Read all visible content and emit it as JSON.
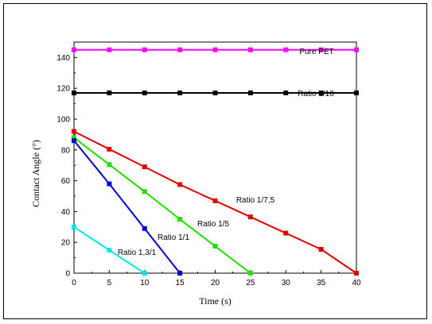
{
  "chart_data": {
    "type": "line",
    "title": "",
    "xlabel": "Time (s)",
    "ylabel": "Contact Angle (°)",
    "xlim": [
      0,
      40
    ],
    "ylim": [
      0,
      150
    ],
    "x_ticks": [
      0,
      5,
      10,
      15,
      20,
      25,
      30,
      35,
      40
    ],
    "y_ticks": [
      0,
      20,
      40,
      60,
      80,
      100,
      120,
      140
    ],
    "grid": false,
    "legend": "none (labels placed next to lines)",
    "series": [
      {
        "name": "Pure PET",
        "color": "#ff00ff",
        "x": [
          0,
          5,
          10,
          15,
          20,
          25,
          30,
          35,
          40
        ],
        "y": [
          145,
          145,
          145,
          145,
          145,
          145,
          145,
          145,
          145
        ]
      },
      {
        "name": "Ratio 1/10",
        "color": "#000000",
        "x": [
          0,
          5,
          10,
          15,
          20,
          25,
          30,
          35,
          40
        ],
        "y": [
          117,
          117,
          117,
          117,
          117,
          117,
          117,
          117,
          117
        ]
      },
      {
        "name": "Ratio 1/7,5",
        "color": "#e00000",
        "x": [
          0,
          5,
          10,
          15,
          20,
          25,
          30,
          35,
          40
        ],
        "y": [
          92,
          80.5,
          69,
          57.5,
          47,
          36.5,
          26,
          15.5,
          0
        ]
      },
      {
        "name": "Ratio 1/5",
        "color": "#22dd00",
        "x": [
          0,
          5,
          10,
          15,
          20,
          25
        ],
        "y": [
          88,
          70.5,
          53,
          35,
          17.5,
          0
        ]
      },
      {
        "name": "Ratio 1/1",
        "color": "#0000cc",
        "x": [
          0,
          5,
          10,
          15
        ],
        "y": [
          86,
          58,
          29,
          0
        ]
      },
      {
        "name": "Ratio 1,3/1",
        "color": "#00e5e5",
        "x": [
          0,
          5,
          10
        ],
        "y": [
          30,
          15,
          0
        ]
      }
    ]
  }
}
